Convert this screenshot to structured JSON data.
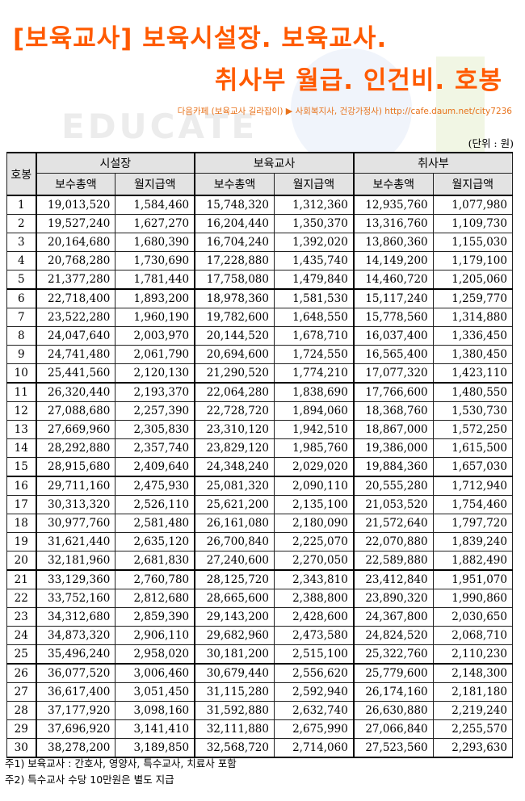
{
  "title": {
    "line1": "[보육교사] 보육시설장. 보육교사.",
    "line2": "취사부 월급. 인건비. 호봉"
  },
  "watermark": {
    "text": "EDUCATE"
  },
  "source": {
    "prefix": "다음카페 (보육교사 길라잡이)",
    "arrow": "▶",
    "suffix": "사회복지사, 건강가정사) http://cafe.daum.net/city7236"
  },
  "unit": "(단위 : 원)",
  "table": {
    "headers": {
      "step": "호봉",
      "group_director": "시설장",
      "group_teacher": "보육교사",
      "group_cook": "취사부",
      "total": "보수총액",
      "monthly": "월지급액"
    },
    "rows": [
      [
        "1",
        "19,013,520",
        "1,584,460",
        "15,748,320",
        "1,312,360",
        "12,935,760",
        "1,077,980"
      ],
      [
        "2",
        "19,527,240",
        "1,627,270",
        "16,204,440",
        "1,350,370",
        "13,316,760",
        "1,109,730"
      ],
      [
        "3",
        "20,164,680",
        "1,680,390",
        "16,704,240",
        "1,392,020",
        "13,860,360",
        "1,155,030"
      ],
      [
        "4",
        "20,768,280",
        "1,730,690",
        "17,228,880",
        "1,435,740",
        "14,149,200",
        "1,179,100"
      ],
      [
        "5",
        "21,377,280",
        "1,781,440",
        "17,758,080",
        "1,479,840",
        "14,460,720",
        "1,205,060"
      ],
      [
        "6",
        "22,718,400",
        "1,893,200",
        "18,978,360",
        "1,581,530",
        "15,117,240",
        "1,259,770"
      ],
      [
        "7",
        "23,522,280",
        "1,960,190",
        "19,782,600",
        "1,648,550",
        "15,778,560",
        "1,314,880"
      ],
      [
        "8",
        "24,047,640",
        "2,003,970",
        "20,144,520",
        "1,678,710",
        "16,037,400",
        "1,336,450"
      ],
      [
        "9",
        "24,741,480",
        "2,061,790",
        "20,694,600",
        "1,724,550",
        "16,565,400",
        "1,380,450"
      ],
      [
        "10",
        "25,441,560",
        "2,120,130",
        "21,290,520",
        "1,774,210",
        "17,077,320",
        "1,423,110"
      ],
      [
        "11",
        "26,320,440",
        "2,193,370",
        "22,064,280",
        "1,838,690",
        "17,766,600",
        "1,480,550"
      ],
      [
        "12",
        "27,088,680",
        "2,257,390",
        "22,728,720",
        "1,894,060",
        "18,368,760",
        "1,530,730"
      ],
      [
        "13",
        "27,669,960",
        "2,305,830",
        "23,310,120",
        "1,942,510",
        "18,867,000",
        "1,572,250"
      ],
      [
        "14",
        "28,292,880",
        "2,357,740",
        "23,829,120",
        "1,985,760",
        "19,386,000",
        "1,615,500"
      ],
      [
        "15",
        "28,915,680",
        "2,409,640",
        "24,348,240",
        "2,029,020",
        "19,884,360",
        "1,657,030"
      ],
      [
        "16",
        "29,711,160",
        "2,475,930",
        "25,081,320",
        "2,090,110",
        "20,555,280",
        "1,712,940"
      ],
      [
        "17",
        "30,313,320",
        "2,526,110",
        "25,621,200",
        "2,135,100",
        "21,053,520",
        "1,754,460"
      ],
      [
        "18",
        "30,977,760",
        "2,581,480",
        "26,161,080",
        "2,180,090",
        "21,572,640",
        "1,797,720"
      ],
      [
        "19",
        "31,621,440",
        "2,635,120",
        "26,700,840",
        "2,225,070",
        "22,070,880",
        "1,839,240"
      ],
      [
        "20",
        "32,181,960",
        "2,681,830",
        "27,240,600",
        "2,270,050",
        "22,589,880",
        "1,882,490"
      ],
      [
        "21",
        "33,129,360",
        "2,760,780",
        "28,125,720",
        "2,343,810",
        "23,412,840",
        "1,951,070"
      ],
      [
        "22",
        "33,752,160",
        "2,812,680",
        "28,665,600",
        "2,388,800",
        "23,890,320",
        "1,990,860"
      ],
      [
        "23",
        "34,312,680",
        "2,859,390",
        "29,143,200",
        "2,428,600",
        "24,367,800",
        "2,030,650"
      ],
      [
        "24",
        "34,873,320",
        "2,906,110",
        "29,682,960",
        "2,473,580",
        "24,824,520",
        "2,068,710"
      ],
      [
        "25",
        "35,496,240",
        "2,958,020",
        "30,181,200",
        "2,515,100",
        "25,322,760",
        "2,110,230"
      ],
      [
        "26",
        "36,077,520",
        "3,006,460",
        "30,679,440",
        "2,556,620",
        "25,779,600",
        "2,148,300"
      ],
      [
        "27",
        "36,617,400",
        "3,051,450",
        "31,115,280",
        "2,592,940",
        "26,174,160",
        "2,181,180"
      ],
      [
        "28",
        "37,177,920",
        "3,098,160",
        "31,592,880",
        "2,632,740",
        "26,630,880",
        "2,219,240"
      ],
      [
        "29",
        "37,696,920",
        "3,141,410",
        "32,111,880",
        "2,675,990",
        "27,066,840",
        "2,255,570"
      ],
      [
        "30",
        "38,278,200",
        "3,189,850",
        "32,568,720",
        "2,714,060",
        "27,523,560",
        "2,293,630"
      ]
    ]
  },
  "notes": {
    "note1": "주1) 보육교사 : 간호사, 영양사, 특수교사, 치료사 포함",
    "note2": "주2) 특수교사 수당 10만원은 별도 지급"
  }
}
